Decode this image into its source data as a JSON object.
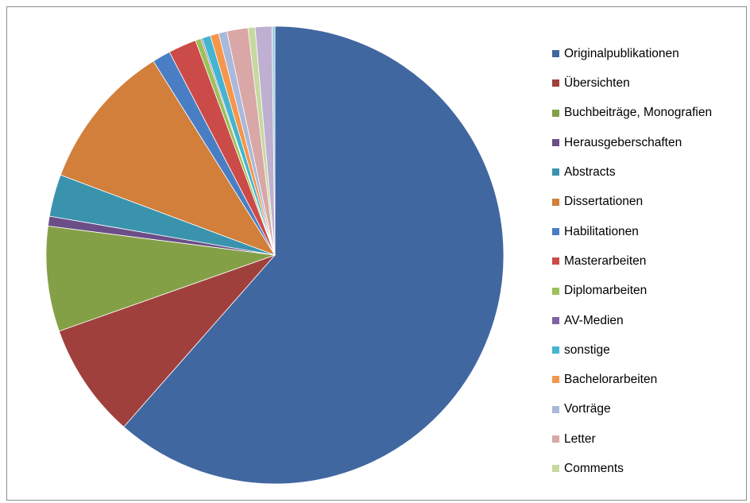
{
  "chart_data": {
    "type": "pie",
    "start_angle_deg": 0,
    "direction": "clockwise",
    "legend_position": "right",
    "series": [
      {
        "name": "Originalpublikationen",
        "value": 62.1,
        "color": "#4167A0"
      },
      {
        "name": "Übersichten",
        "value": 8.2,
        "color": "#A0403C"
      },
      {
        "name": "Buchbeiträge, Monografien",
        "value": 7.5,
        "color": "#84A046"
      },
      {
        "name": "Herausgeberschaften",
        "value": 0.7,
        "color": "#6B4E87"
      },
      {
        "name": "Abstracts",
        "value": 3.0,
        "color": "#3A93AD"
      },
      {
        "name": "Dissertationen",
        "value": 10.5,
        "color": "#D17F3A"
      },
      {
        "name": "Habilitationen",
        "value": 1.3,
        "color": "#4A7EC4"
      },
      {
        "name": "Masterarbeiten",
        "value": 2.0,
        "color": "#CB4B48"
      },
      {
        "name": "Diplomarbeiten",
        "value": 0.4,
        "color": "#9BC058"
      },
      {
        "name": "AV-Medien",
        "value": 0.1,
        "color": "#8062A4"
      },
      {
        "name": "sonstige",
        "value": 0.6,
        "color": "#45B4CF"
      },
      {
        "name": "Bachelorarbeiten",
        "value": 0.6,
        "color": "#F5964A"
      },
      {
        "name": "Vorträge",
        "value": 0.6,
        "color": "#A9B9DB"
      },
      {
        "name": "Letter",
        "value": 1.5,
        "color": "#D9A7A6"
      },
      {
        "name": "Comments",
        "value": 0.5,
        "color": "#C5D9A0"
      },
      {
        "name": "",
        "value": 1.2,
        "color": "#BFB0D2"
      },
      {
        "name": "",
        "value": 0.2,
        "color": "#9ACBDD"
      }
    ]
  }
}
